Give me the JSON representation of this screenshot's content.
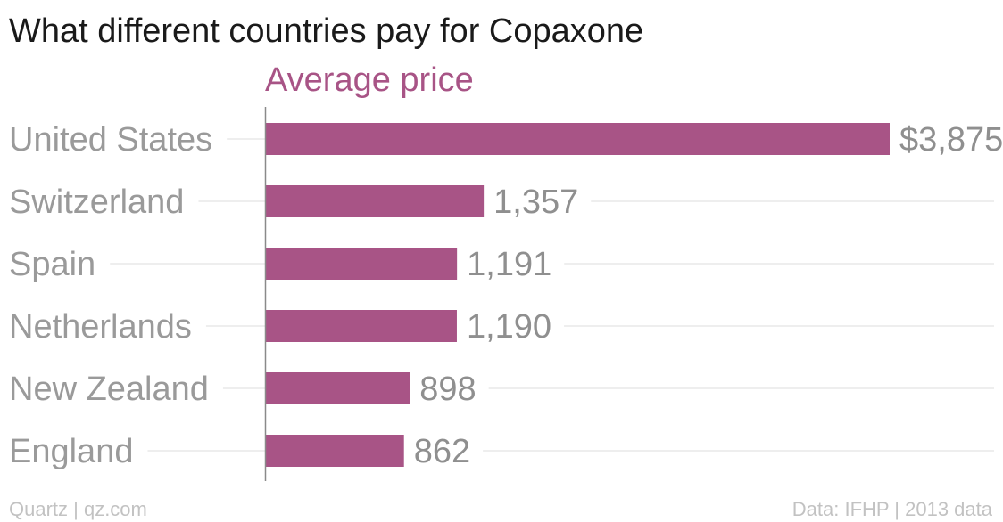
{
  "title": "What different countries pay for Copaxone",
  "footer": {
    "left": "Quartz | qz.com",
    "right": "Data: IFHP | 2013 data"
  },
  "colors": {
    "bar": "#a85486",
    "subtitle": "#a85486",
    "grid": "#e9e9e9",
    "axis": "#8a8a8a"
  },
  "chart_data": {
    "type": "bar",
    "orientation": "horizontal",
    "title": "What different countries pay for Copaxone",
    "series_label": "Average price",
    "categories": [
      "United States",
      "Switzerland",
      "Spain",
      "Netherlands",
      "New Zealand",
      "England"
    ],
    "values": [
      3875,
      1357,
      1191,
      1190,
      898,
      862
    ],
    "value_labels": [
      "$3,875",
      "1,357",
      "1,191",
      "1,190",
      "898",
      "862"
    ],
    "xlim": [
      0,
      3875
    ],
    "grid": true
  }
}
